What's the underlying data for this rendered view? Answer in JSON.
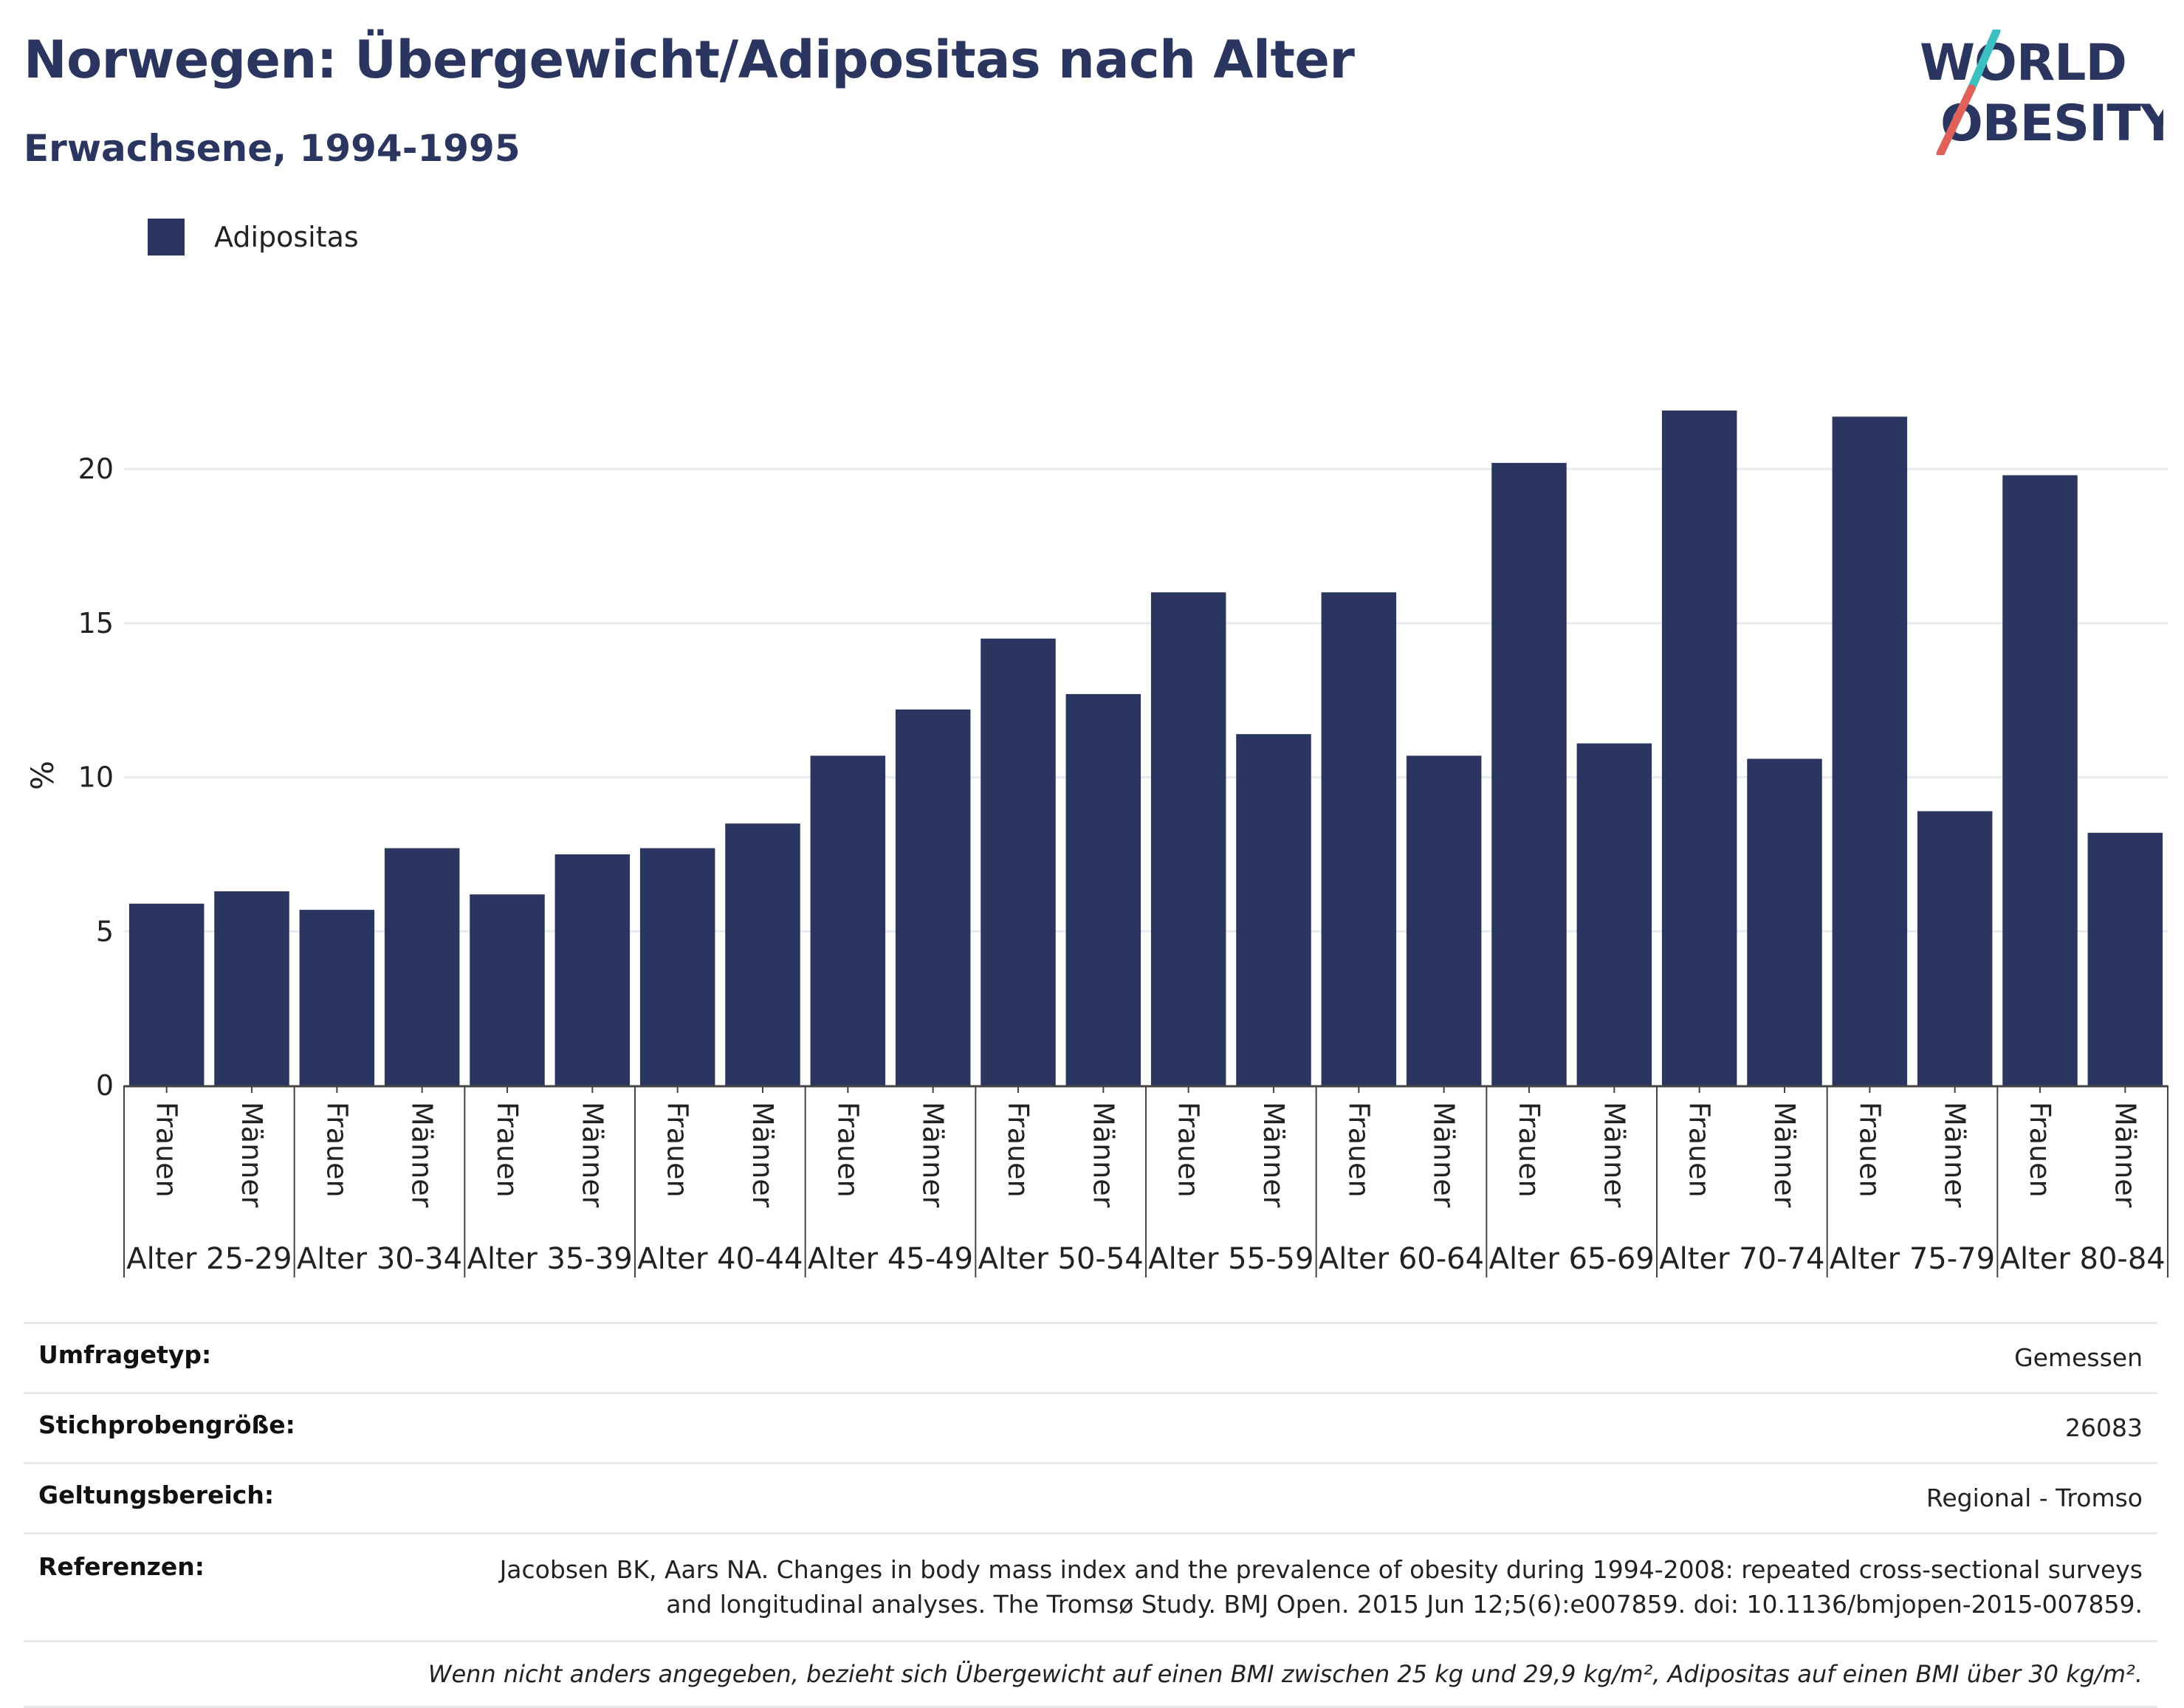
{
  "title": "Norwegen: Übergewicht/Adipositas nach Alter",
  "subtitle": "Erwachsene, 1994-1995",
  "logo": {
    "line1": "WORLD",
    "line2": "OBESITY",
    "colors": {
      "text": "#2a365f",
      "slash_top": "#3bbfc0",
      "slash_bottom": "#e0605a"
    }
  },
  "legend": {
    "items": [
      {
        "label": "Adipositas",
        "color": "#2a365f"
      }
    ],
    "position": "top-left"
  },
  "chart_data": {
    "type": "bar",
    "title": "Norwegen: Übergewicht/Adipositas nach Alter",
    "subtitle": "Erwachsene, 1994-1995",
    "ylabel": "%",
    "ylim": [
      0,
      23
    ],
    "yticks": [
      0,
      5,
      10,
      15,
      20
    ],
    "grid": true,
    "bar_color": "#2a365f",
    "groups": [
      "Alter 25-29",
      "Alter 30-34",
      "Alter 35-39",
      "Alter 40-44",
      "Alter 45-49",
      "Alter 50-54",
      "Alter 55-59",
      "Alter 60-64",
      "Alter 65-69",
      "Alter 70-74",
      "Alter 75-79",
      "Alter 80-84"
    ],
    "subcategories": [
      "Frauen",
      "Männer"
    ],
    "series": [
      {
        "name": "Adipositas",
        "values": [
          5.9,
          6.3,
          5.7,
          7.7,
          6.2,
          7.5,
          7.7,
          8.5,
          10.7,
          12.2,
          14.5,
          12.7,
          16.0,
          11.4,
          16.0,
          10.7,
          20.2,
          11.1,
          21.9,
          10.6,
          21.7,
          8.9,
          19.8,
          8.2
        ]
      }
    ]
  },
  "info": {
    "rows": [
      {
        "key": "Umfragetyp:",
        "value": "Gemessen"
      },
      {
        "key": "Stichprobengröße:",
        "value": "26083"
      },
      {
        "key": "Geltungsbereich:",
        "value": "Regional - Tromso"
      }
    ],
    "ref_key": "Referenzen:",
    "ref_line1": "Jacobsen BK, Aars NA. Changes in body mass index and the prevalence of obesity during 1994-2008: repeated cross-sectional surveys",
    "ref_line2": "and longitudinal analyses. The Tromsø Study. BMJ Open. 2015 Jun 12;5(6):e007859. doi: 10.1136/bmjopen-2015-007859.",
    "footnote": "Wenn nicht anders angegeben, bezieht sich Übergewicht auf einen BMI zwischen 25 kg und 29,9 kg/m², Adipositas auf einen BMI über 30 kg/m²."
  }
}
